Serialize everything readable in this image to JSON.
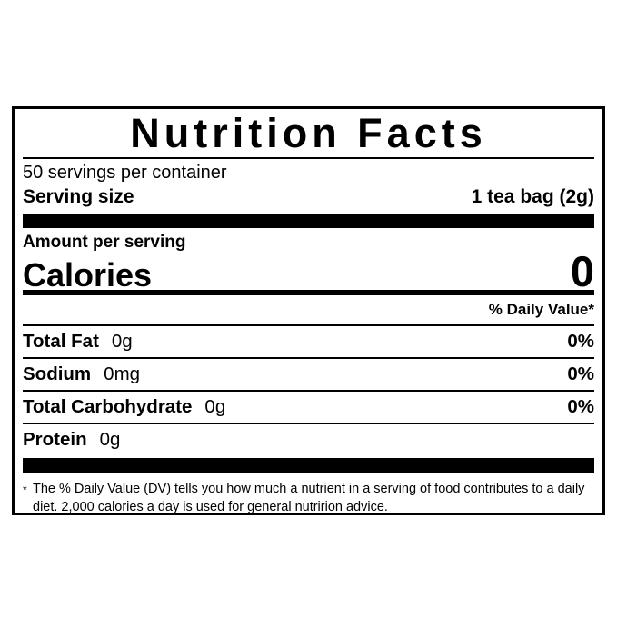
{
  "page": {
    "background": "#ffffff"
  },
  "label": {
    "title": "Nutrition Facts",
    "servings_per_container": "50 servings per container",
    "serving_size": {
      "label": "Serving size",
      "value": "1 tea bag (2g)"
    },
    "amount_per_serving_label": "Amount per serving",
    "calories": {
      "label": "Calories",
      "value": "0"
    },
    "daily_value_header": "% Daily Value*",
    "nutrients": [
      {
        "name": "Total Fat",
        "amount": "0g",
        "daily_value": "0%"
      },
      {
        "name": "Sodium",
        "amount": "0mg",
        "daily_value": "0%"
      },
      {
        "name": "Total Carbohydrate",
        "amount": "0g",
        "daily_value": "0%"
      },
      {
        "name": "Protein",
        "amount": "0g",
        "daily_value": ""
      }
    ],
    "footnote": {
      "marker": "*",
      "text": "The % Daily Value (DV) tells you how much a nutrient in a serving of food contributes to a daily diet. 2,000 calories a day is used for general nutririon advice."
    },
    "colors": {
      "ink": "#000000",
      "background": "#ffffff"
    }
  }
}
